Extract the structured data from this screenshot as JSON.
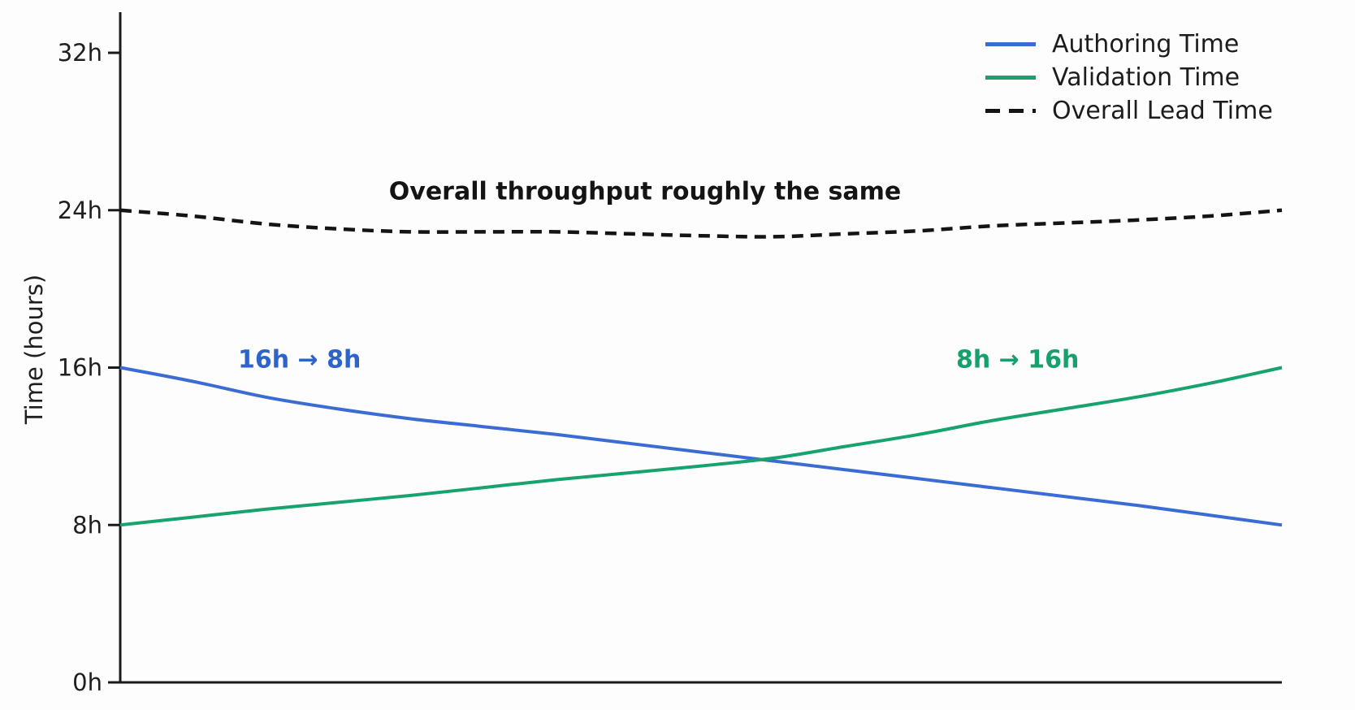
{
  "chart_data": {
    "type": "line",
    "title": "",
    "xlabel": "",
    "ylabel": "Time (hours)",
    "ylim": [
      0,
      34
    ],
    "yticks": [
      {
        "value": 0,
        "label": "0h"
      },
      {
        "value": 8,
        "label": "8h"
      },
      {
        "value": 16,
        "label": "16h"
      },
      {
        "value": 24,
        "label": "24h"
      },
      {
        "value": 32,
        "label": "32h"
      }
    ],
    "xticks": [],
    "grid": false,
    "legend_position": "upper right",
    "x": [
      0,
      0.0625,
      0.125,
      0.1875,
      0.25,
      0.3125,
      0.375,
      0.4375,
      0.5,
      0.5625,
      0.625,
      0.6875,
      0.75,
      0.8125,
      0.875,
      0.9375,
      1
    ],
    "series": [
      {
        "name": "Authoring Time",
        "color": "#3B6CD3",
        "style": "solid",
        "values": [
          16,
          15.3,
          14.5,
          13.9,
          13.4,
          13.0,
          12.6,
          12.15,
          11.7,
          11.25,
          10.8,
          10.35,
          9.9,
          9.45,
          9.0,
          8.5,
          8
        ]
      },
      {
        "name": "Validation Time",
        "color": "#17A36D",
        "style": "solid",
        "values": [
          8,
          8.4,
          8.8,
          9.15,
          9.5,
          9.9,
          10.3,
          10.65,
          11.0,
          11.4,
          12.0,
          12.6,
          13.3,
          13.9,
          14.5,
          15.2,
          16
        ]
      },
      {
        "name": "Overall Lead Time",
        "color": "#141414",
        "style": "dashed",
        "values": [
          24,
          23.7,
          23.3,
          23.05,
          22.9,
          22.9,
          22.9,
          22.8,
          22.7,
          22.65,
          22.8,
          22.95,
          23.2,
          23.35,
          23.5,
          23.7,
          24
        ]
      }
    ],
    "annotations": [
      {
        "text": "Overall throughput roughly the same",
        "color": "#141414"
      },
      {
        "text": "16h → 8h",
        "color": "#2F63CC"
      },
      {
        "text": "8h → 16h",
        "color": "#17A06B"
      }
    ]
  },
  "axis": {
    "color": "#1a1a1a"
  }
}
